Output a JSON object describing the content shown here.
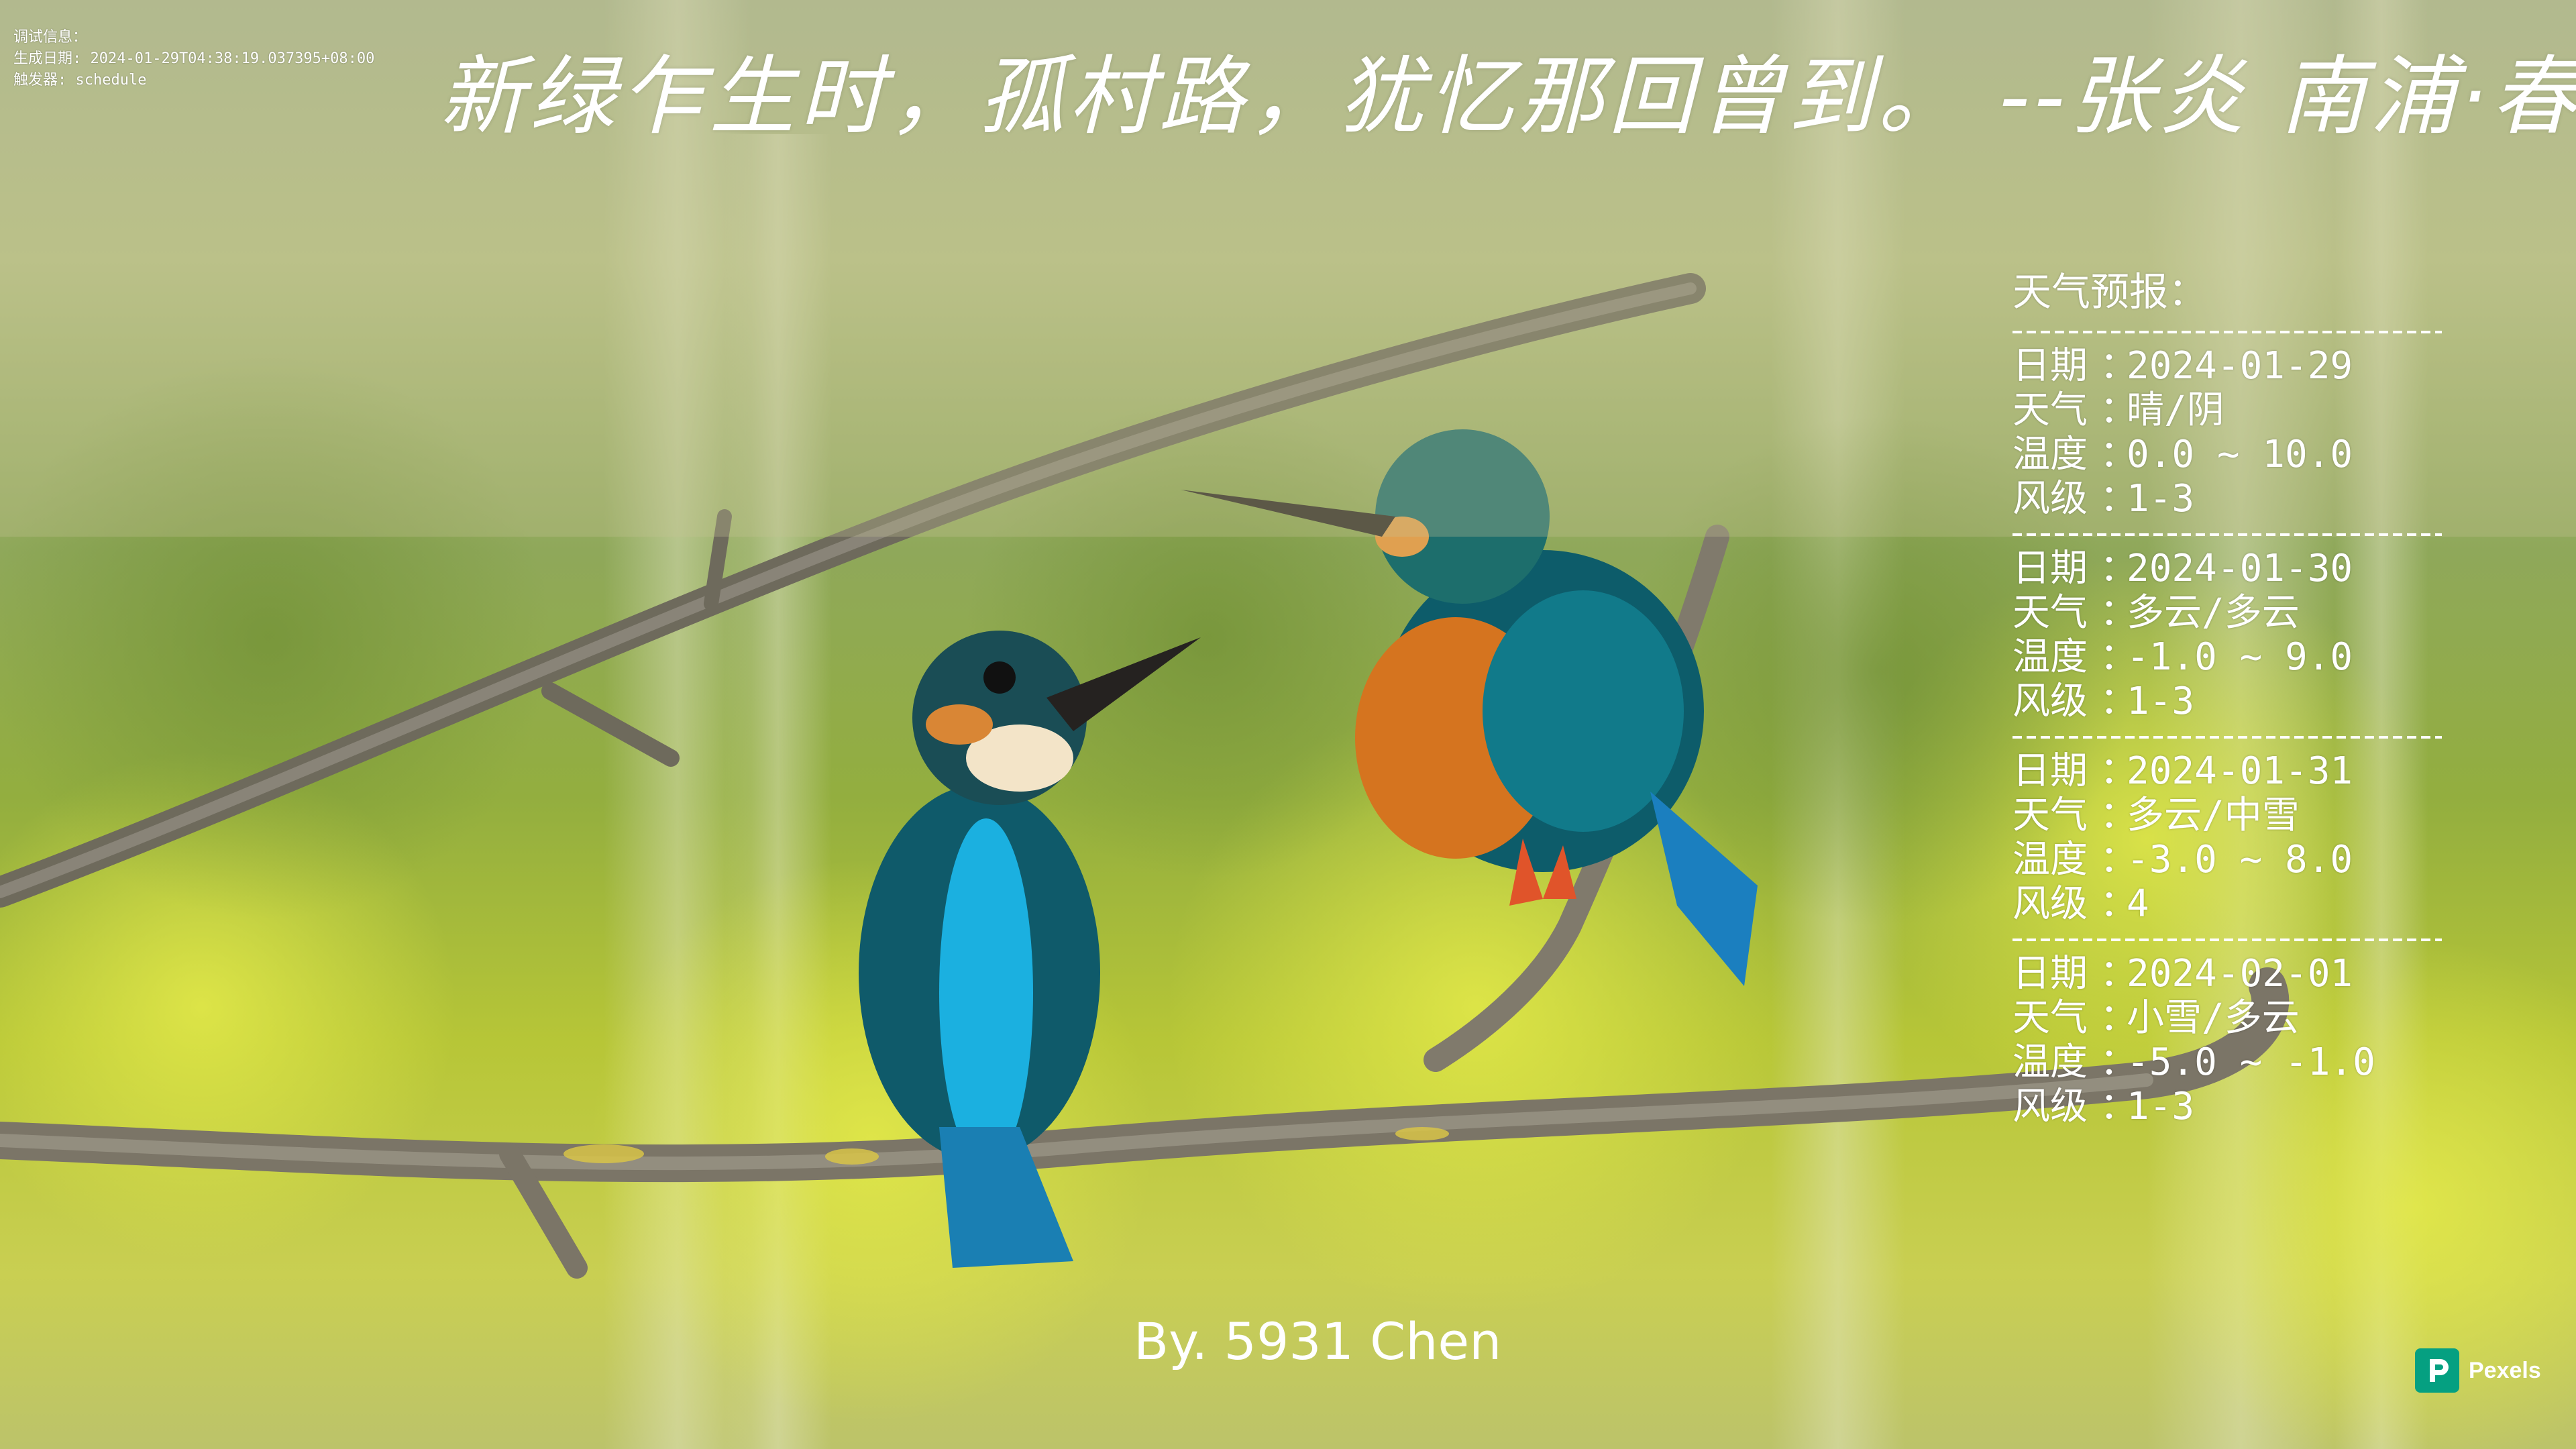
{
  "debug": {
    "header": "调试信息：",
    "generated": "生成日期: 2024-01-29T04:38:19.037395+08:00",
    "trigger": "触发器: schedule"
  },
  "quote": "新绿乍生时，孤村路，犹忆那回曾到。 --张炎 南浦·春水",
  "forecast": {
    "title": "天气预报：",
    "labels": {
      "date": "日期",
      "weather": "天气",
      "temp": "温度",
      "wind": "风级",
      "sep": "："
    },
    "days": [
      {
        "date": "2024-01-29",
        "weather": "晴/阴",
        "temp": "0.0 ~ 10.0",
        "wind": "1-3"
      },
      {
        "date": "2024-01-30",
        "weather": "多云/多云",
        "temp": "-1.0 ~ 9.0",
        "wind": "1-3"
      },
      {
        "date": "2024-01-31",
        "weather": "多云/中雪",
        "temp": "-3.0 ~ 8.0",
        "wind": "4"
      },
      {
        "date": "2024-02-01",
        "weather": "小雪/多云",
        "temp": "-5.0 ~ -1.0",
        "wind": "1-3"
      }
    ]
  },
  "byline": "By. 5931 Chen",
  "watermark": "Pexels",
  "icons": {
    "watermark_logo": "pexels-logo-icon"
  },
  "colors": {
    "text": "#ffffff",
    "watermark_brand": "#05a081"
  }
}
